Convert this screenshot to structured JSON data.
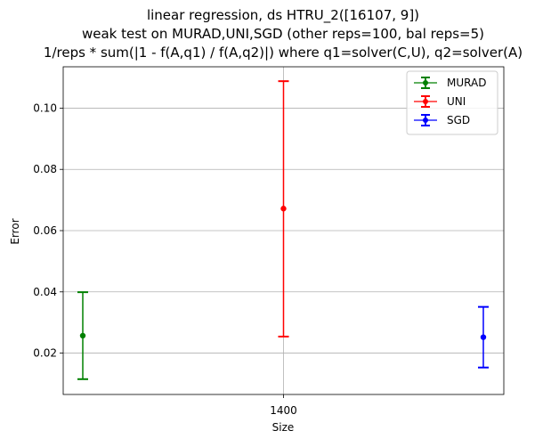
{
  "chart_data": {
    "type": "scatter",
    "error_bars": true,
    "title_lines": [
      "linear regression, ds HTRU_2([16107, 9])",
      "weak test on MURAD,UNI,SGD (other reps=100, bal reps=5)",
      "1/reps * sum(|1 - f(A,q1) / f(A,q2)|) where q1=solver(C,U), q2=solver(A)"
    ],
    "xlabel": "Size",
    "ylabel": "Error",
    "x_ticks": [
      "1400"
    ],
    "ylim": [
      0.0065,
      0.1135
    ],
    "y_ticks": [
      0.02,
      0.04,
      0.06,
      0.08,
      0.1
    ],
    "y_tick_labels": [
      "0.02",
      "0.04",
      "0.06",
      "0.08",
      "0.10"
    ],
    "grid": true,
    "legend_position": "top-right",
    "series": [
      {
        "name": "MURAD",
        "color": "#008000",
        "x": 1400,
        "offset": "left",
        "y": 0.0257,
        "err_low": 0.0115,
        "err_high": 0.0399
      },
      {
        "name": "UNI",
        "color": "#ff0000",
        "x": 1400,
        "offset": "center",
        "y": 0.0672,
        "err_low": 0.0254,
        "err_high": 0.1088
      },
      {
        "name": "SGD",
        "color": "#0000ff",
        "x": 1400,
        "offset": "right",
        "y": 0.0252,
        "err_low": 0.0153,
        "err_high": 0.0351
      }
    ]
  }
}
